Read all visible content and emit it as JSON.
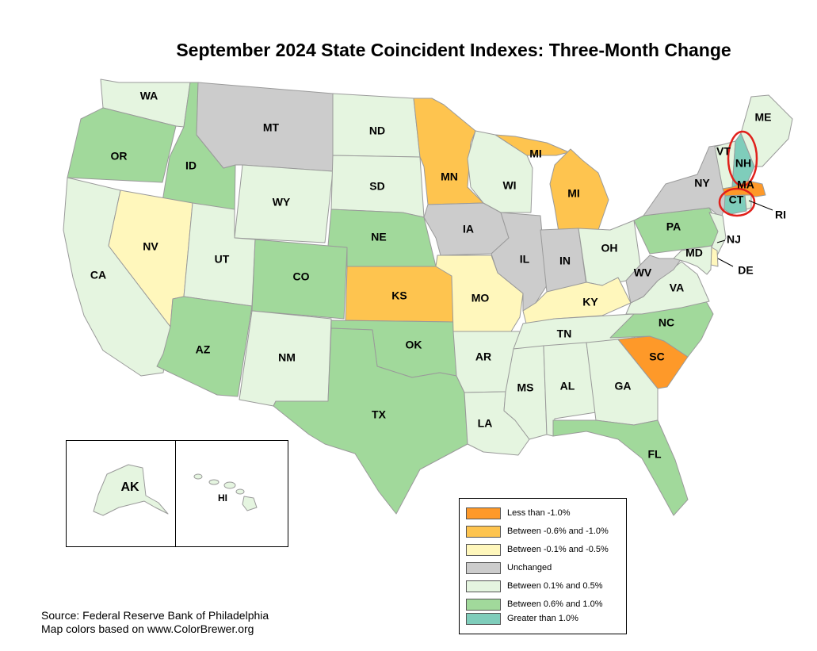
{
  "title": "September 2024 State Coincident Indexes: Three-Month Change",
  "colors": {
    "less_than_neg1": "#fe9929",
    "neg06_to_neg1": "#fec44f",
    "neg01_to_neg05": "#fff7bc",
    "unchanged": "#cccccc",
    "pos01_to_05": "#e5f5e0",
    "pos06_to_1": "#a1d99b",
    "greater_than_1": "#7fcdbb",
    "highlight_circle": "#e0201b"
  },
  "legend": [
    {
      "label": "Less than -1.0%",
      "color_key": "less_than_neg1"
    },
    {
      "label": "Between -0.6% and -1.0%",
      "color_key": "neg06_to_neg1"
    },
    {
      "label": "Between -0.1% and -0.5%",
      "color_key": "neg01_to_neg05"
    },
    {
      "label": "Unchanged",
      "color_key": "unchanged"
    },
    {
      "label": "Between 0.1% and 0.5%",
      "color_key": "pos01_to_05"
    },
    {
      "label": "Between 0.6% and 1.0%",
      "color_key": "pos06_to_1"
    },
    {
      "label": "Greater than 1.0%",
      "color_key": "greater_than_1",
      "circled": true
    }
  ],
  "states": {
    "WA": "pos01_to_05",
    "OR": "pos06_to_1",
    "CA": "pos01_to_05",
    "ID": "pos06_to_1",
    "NV": "neg01_to_neg05",
    "MT": "unchanged",
    "WY": "pos01_to_05",
    "UT": "pos01_to_05",
    "AZ": "pos06_to_1",
    "CO": "pos06_to_1",
    "NM": "pos01_to_05",
    "ND": "pos01_to_05",
    "SD": "pos01_to_05",
    "NE": "pos06_to_1",
    "KS": "neg06_to_neg1",
    "OK": "pos06_to_1",
    "TX": "pos06_to_1",
    "MN": "neg06_to_neg1",
    "IA": "unchanged",
    "MO": "neg01_to_neg05",
    "AR": "pos01_to_05",
    "LA": "pos01_to_05",
    "WI": "pos01_to_05",
    "IL": "unchanged",
    "MI": "neg06_to_neg1",
    "IN": "unchanged",
    "OH": "pos01_to_05",
    "KY": "neg01_to_neg05",
    "TN": "pos01_to_05",
    "MS": "pos01_to_05",
    "AL": "pos01_to_05",
    "GA": "pos01_to_05",
    "FL": "pos06_to_1",
    "SC": "less_than_neg1",
    "NC": "pos06_to_1",
    "VA": "pos01_to_05",
    "WV": "unchanged",
    "PA": "pos06_to_1",
    "NY": "unchanged",
    "NJ": "pos01_to_05",
    "DE": "neg01_to_neg05",
    "MD": "pos01_to_05",
    "CT": "greater_than_1",
    "RI": "pos01_to_05",
    "MA": "less_than_neg1",
    "VT": "pos01_to_05",
    "NH": "greater_than_1",
    "ME": "pos01_to_05",
    "AK": "pos01_to_05",
    "HI": "pos01_to_05"
  },
  "labels": {
    "WA": "WA",
    "OR": "OR",
    "CA": "CA",
    "ID": "ID",
    "NV": "NV",
    "MT": "MT",
    "WY": "WY",
    "UT": "UT",
    "AZ": "AZ",
    "CO": "CO",
    "NM": "NM",
    "ND": "ND",
    "SD": "SD",
    "NE": "NE",
    "KS": "KS",
    "OK": "OK",
    "TX": "TX",
    "MN": "MN",
    "IA": "IA",
    "MO": "MO",
    "AR": "AR",
    "LA": "LA",
    "WI": "WI",
    "IL": "IL",
    "MI_UP": "MI",
    "MI_LP": "MI",
    "IN": "IN",
    "OH": "OH",
    "KY": "KY",
    "TN": "TN",
    "MS": "MS",
    "AL": "AL",
    "GA": "GA",
    "FL": "FL",
    "SC": "SC",
    "NC": "NC",
    "VA": "VA",
    "WV": "WV",
    "PA": "PA",
    "NY": "NY",
    "NJ": "NJ",
    "DE": "DE",
    "MD": "MD",
    "CT": "CT",
    "RI": "RI",
    "MA": "MA",
    "VT": "VT",
    "NH": "NH",
    "ME": "ME",
    "AK": "AK",
    "HI": "HI"
  },
  "source_lines": [
    "Source: Federal Reserve Bank of Philadelphia",
    "Map colors based on www.ColorBrewer.org"
  ]
}
